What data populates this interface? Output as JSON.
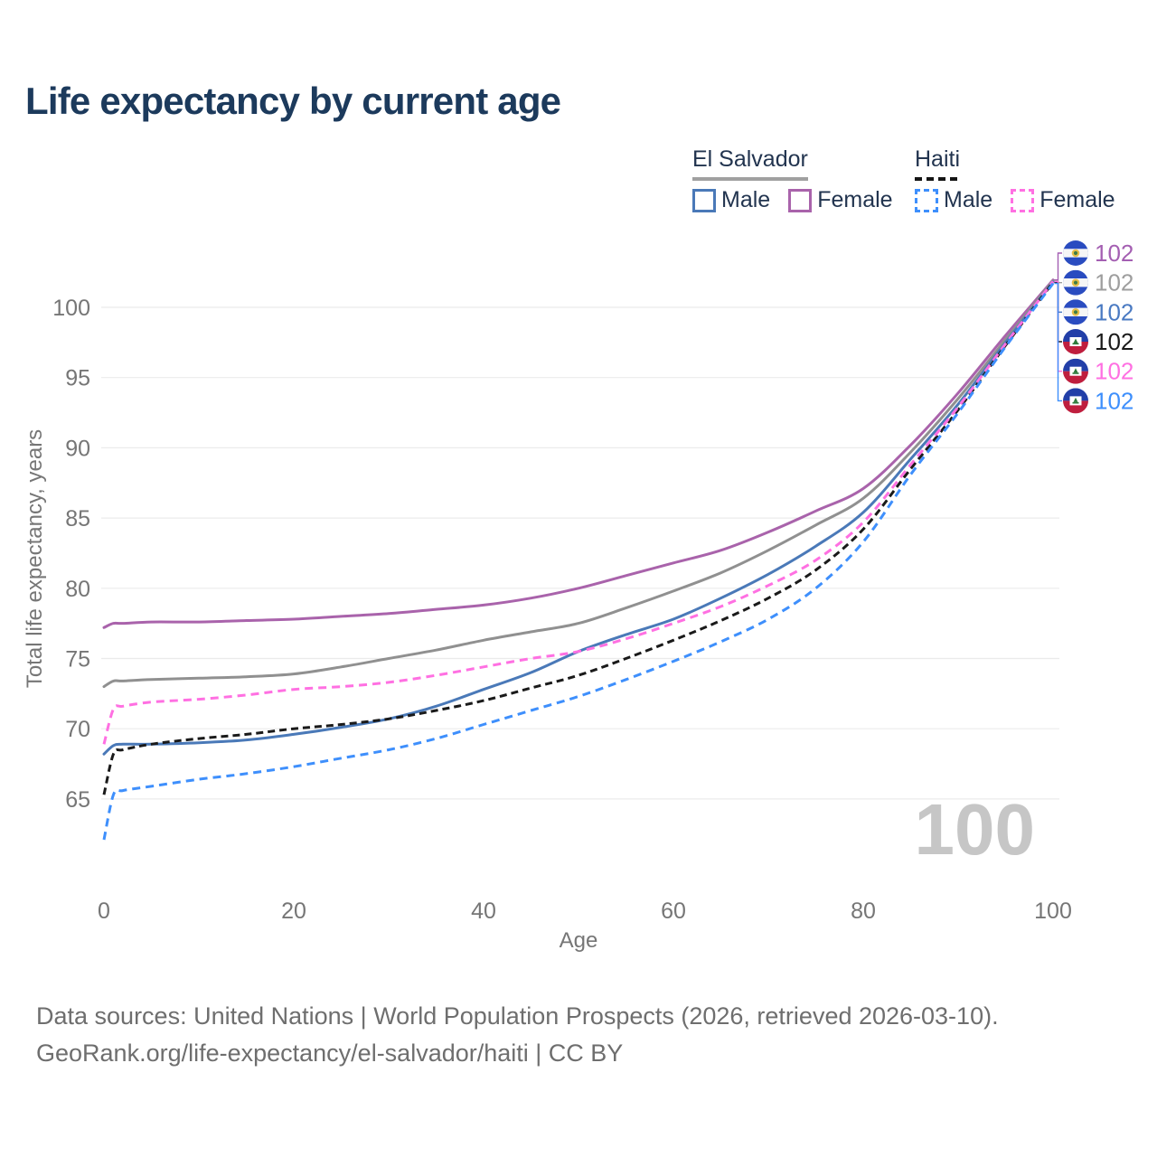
{
  "title": "Life expectancy by current age",
  "legend": {
    "groups": [
      {
        "country": "El Salvador",
        "line_style": "solid",
        "underline_color": "#a0a0a0",
        "items": [
          {
            "label": "Male",
            "color": "#4a79b8",
            "dashed": false
          },
          {
            "label": "Female",
            "color": "#a963ab",
            "dashed": false
          }
        ]
      },
      {
        "country": "Haiti",
        "line_style": "dashed",
        "underline_color": "#151515",
        "items": [
          {
            "label": "Male",
            "color": "#3e8ffc",
            "dashed": true
          },
          {
            "label": "Female",
            "color": "#ff70e2",
            "dashed": true
          }
        ]
      }
    ]
  },
  "chart_data": {
    "type": "line",
    "title": "Life expectancy by current age",
    "xlabel": "Age",
    "ylabel": "Total life expectancy, years",
    "xlim": [
      0,
      100
    ],
    "ylim": [
      62,
      103
    ],
    "xticks": [
      0,
      20,
      40,
      60,
      80,
      100
    ],
    "yticks": [
      65,
      70,
      75,
      80,
      85,
      90,
      95,
      100
    ],
    "grid": "horizontal-only",
    "legend_position": "top-right",
    "age_counter": "100",
    "x": [
      0,
      1,
      2,
      5,
      10,
      15,
      20,
      25,
      30,
      35,
      40,
      45,
      50,
      55,
      60,
      65,
      70,
      75,
      80,
      85,
      90,
      95,
      100
    ],
    "series": [
      {
        "name": "El Salvador Female",
        "country": "El Salvador",
        "sex": "Female",
        "color": "#a963ab",
        "label_color": "#a45fb2",
        "dash": null,
        "flag": "sv",
        "end_label": "102",
        "values": [
          77.2,
          77.5,
          77.5,
          77.6,
          77.6,
          77.7,
          77.8,
          78.0,
          78.2,
          78.5,
          78.8,
          79.3,
          80.0,
          80.9,
          81.8,
          82.7,
          84.0,
          85.5,
          87.1,
          90.2,
          93.9,
          98.0,
          101.95
        ]
      },
      {
        "name": "El Salvador Total",
        "country": "El Salvador",
        "sex": "Total",
        "color": "#909090",
        "label_color": "#9e9e9e",
        "dash": null,
        "flag": "sv",
        "end_label": "102",
        "values": [
          73.0,
          73.4,
          73.4,
          73.5,
          73.6,
          73.7,
          73.9,
          74.4,
          75.0,
          75.6,
          76.3,
          76.9,
          77.5,
          78.6,
          79.8,
          81.1,
          82.7,
          84.5,
          86.4,
          89.7,
          93.5,
          97.7,
          101.88
        ]
      },
      {
        "name": "El Salvador Male",
        "country": "El Salvador",
        "sex": "Male",
        "color": "#4a79b8",
        "label_color": "#4a7ac2",
        "dash": null,
        "flag": "sv",
        "end_label": "102",
        "values": [
          68.2,
          68.8,
          68.9,
          68.9,
          69.0,
          69.2,
          69.6,
          70.1,
          70.7,
          71.6,
          72.8,
          74.0,
          75.5,
          76.7,
          77.8,
          79.3,
          81.0,
          83.0,
          85.4,
          89.2,
          93.1,
          97.5,
          101.8
        ]
      },
      {
        "name": "Haiti Total",
        "country": "Haiti",
        "sex": "Total",
        "color": "#1a1a1a",
        "label_color": "#1a1a1a",
        "dash": "8 5",
        "flag": "ht",
        "end_label": "102",
        "values": [
          65.3,
          68.2,
          68.5,
          68.9,
          69.3,
          69.6,
          70.0,
          70.3,
          70.7,
          71.3,
          72.0,
          72.9,
          73.8,
          75.0,
          76.3,
          77.7,
          79.3,
          81.3,
          84.2,
          88.5,
          92.7,
          97.3,
          101.78
        ]
      },
      {
        "name": "Haiti Female",
        "country": "Haiti",
        "sex": "Female",
        "color": "#ff70e2",
        "label_color": "#ff70e2",
        "dash": "9 6",
        "flag": "ht",
        "end_label": "102",
        "values": [
          68.9,
          71.4,
          71.6,
          71.9,
          72.1,
          72.4,
          72.8,
          73.0,
          73.3,
          73.8,
          74.4,
          75.0,
          75.5,
          76.4,
          77.5,
          78.7,
          80.2,
          82.0,
          84.7,
          88.8,
          92.9,
          97.4,
          101.84
        ]
      },
      {
        "name": "Haiti Male",
        "country": "Haiti",
        "sex": "Male",
        "color": "#3e8ffc",
        "label_color": "#3e8ffc",
        "dash": "9 6",
        "flag": "ht",
        "end_label": "102",
        "values": [
          62.1,
          65.3,
          65.6,
          65.9,
          66.4,
          66.8,
          67.3,
          67.9,
          68.5,
          69.3,
          70.3,
          71.3,
          72.3,
          73.5,
          74.8,
          76.2,
          77.8,
          80.0,
          83.3,
          88.1,
          92.5,
          97.2,
          101.7
        ]
      }
    ]
  },
  "footer": {
    "line1": "Data sources: United Nations | World Population Prospects (2026, retrieved 2026-03-10).",
    "line2": "GeoRank.org/life-expectancy/el-salvador/haiti | CC BY"
  }
}
